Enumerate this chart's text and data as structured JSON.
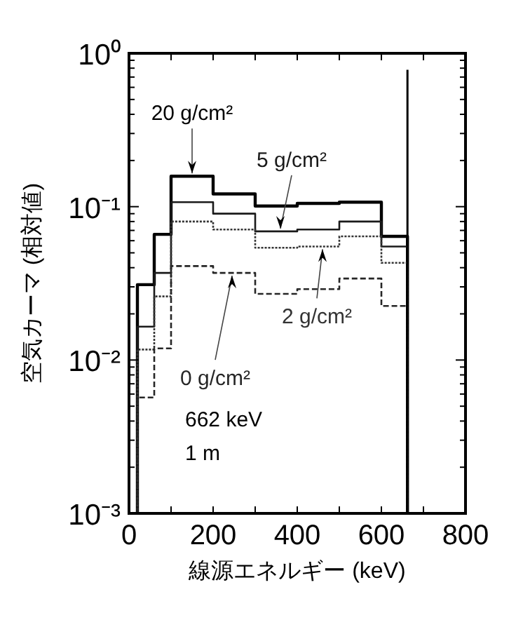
{
  "chart_data": {
    "type": "histogram",
    "xlabel": "線源エネルギー (keV)",
    "ylabel": "空気カーマ (相対値)",
    "log": "y",
    "bins": [
      20,
      60,
      100,
      200,
      300,
      400,
      500,
      600,
      662
    ],
    "series": [
      {
        "name": "20 g/cm²",
        "color": "#000000",
        "line_style": "solid",
        "values": [
          0.031,
          0.066,
          0.158,
          0.121,
          0.101,
          0.105,
          0.107,
          0.064
        ]
      },
      {
        "name": "5 g/cm²",
        "color": "#1a1a1a",
        "line_style": "solid",
        "values": [
          0.0165,
          0.037,
          0.107,
          0.09,
          0.069,
          0.071,
          0.08,
          0.055
        ]
      },
      {
        "name": "2 g/cm²",
        "color": "#333333",
        "line_style": "dotted",
        "values": [
          0.0117,
          0.026,
          0.08,
          0.071,
          0.054,
          0.055,
          0.064,
          0.043
        ]
      },
      {
        "name": "0 g/cm²",
        "color": "#262626",
        "line_style": "dashed",
        "values": [
          0.0057,
          0.0119,
          0.041,
          0.037,
          0.027,
          0.029,
          0.034,
          0.0225
        ]
      },
      {
        "type": "line",
        "color": "#000000",
        "x": [
          662,
          662
        ],
        "values": [
          0.001,
          0.78
        ]
      }
    ],
    "annotations": [
      "662 keV",
      "1 m"
    ],
    "xlim": [
      0,
      800
    ],
    "xticks": [
      0,
      {
        "value": 100,
        "label": null
      },
      200,
      {
        "value": 300,
        "label": null
      },
      400,
      {
        "value": 500,
        "label": null
      },
      600,
      {
        "value": 700,
        "label": null
      },
      800
    ],
    "ylim": [
      0.001,
      1
    ],
    "yticks": [
      {
        "value": 0.001,
        "label": "10⁻³"
      },
      {
        "value": 0.01,
        "label": "10⁻²"
      },
      {
        "value": 0.1,
        "label": "10⁻¹"
      },
      {
        "value": 1,
        "label": "10⁰"
      }
    ],
    "grid": false
  }
}
